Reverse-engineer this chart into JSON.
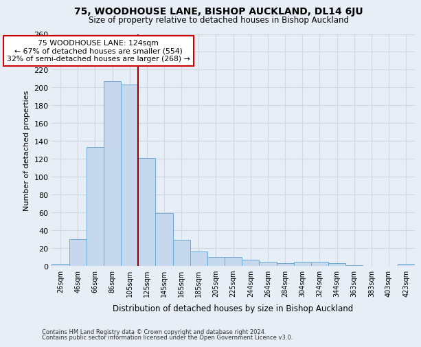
{
  "title": "75, WOODHOUSE LANE, BISHOP AUCKLAND, DL14 6JU",
  "subtitle": "Size of property relative to detached houses in Bishop Auckland",
  "xlabel": "Distribution of detached houses by size in Bishop Auckland",
  "ylabel": "Number of detached properties",
  "bar_labels": [
    "26sqm",
    "46sqm",
    "66sqm",
    "86sqm",
    "105sqm",
    "125sqm",
    "145sqm",
    "165sqm",
    "185sqm",
    "205sqm",
    "225sqm",
    "244sqm",
    "264sqm",
    "284sqm",
    "304sqm",
    "324sqm",
    "344sqm",
    "363sqm",
    "383sqm",
    "403sqm",
    "423sqm"
  ],
  "bar_values": [
    2,
    30,
    133,
    207,
    203,
    121,
    59,
    29,
    16,
    10,
    10,
    7,
    5,
    3,
    5,
    5,
    3,
    1,
    0,
    0,
    2
  ],
  "bar_color": "#c5d8ed",
  "bar_edge_color": "#6aaad4",
  "vline_x": 4.5,
  "vline_color": "#8b0000",
  "annotation_text": "75 WOODHOUSE LANE: 124sqm\n← 67% of detached houses are smaller (554)\n32% of semi-detached houses are larger (268) →",
  "annotation_box_color": "#ffffff",
  "annotation_box_edge": "#cc0000",
  "ylim": [
    0,
    260
  ],
  "yticks": [
    0,
    20,
    40,
    60,
    80,
    100,
    120,
    140,
    160,
    180,
    200,
    220,
    240,
    260
  ],
  "grid_color": "#d0d8e4",
  "bg_color": "#e8eef5",
  "footer1": "Contains HM Land Registry data © Crown copyright and database right 2024.",
  "footer2": "Contains public sector information licensed under the Open Government Licence v3.0."
}
